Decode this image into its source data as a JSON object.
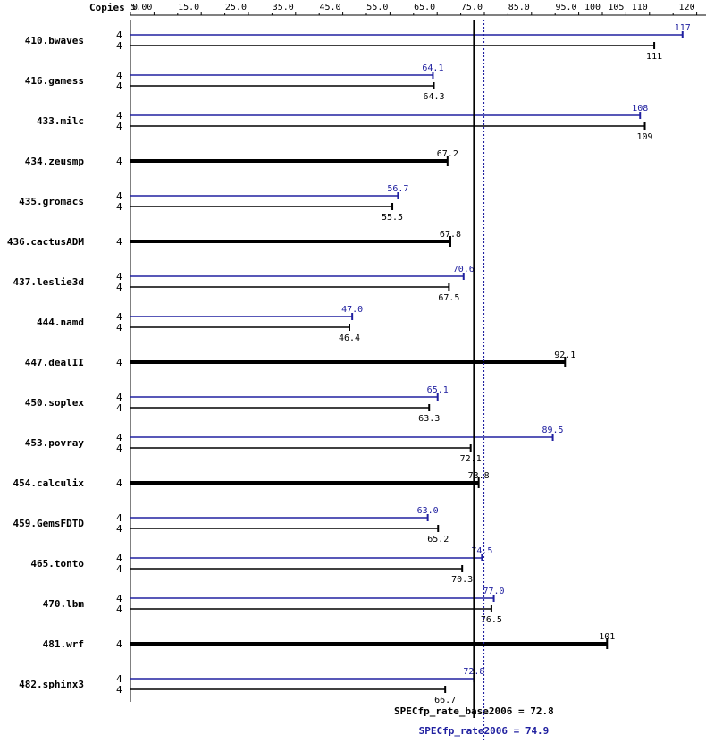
{
  "colors": {
    "peak": "#2020a0",
    "base": "#000000",
    "background": "#ffffff"
  },
  "chart_data": {
    "type": "bar",
    "orientation": "horizontal",
    "copies_header": "Copies",
    "x_ticks": [
      "0",
      "5.00",
      "15.0",
      "25.0",
      "35.0",
      "45.0",
      "55.0",
      "65.0",
      "75.0",
      "85.0",
      "95.0",
      "100",
      "105",
      "110",
      "120"
    ],
    "x_tick_values": [
      0,
      5,
      15,
      25,
      35,
      45,
      55,
      65,
      75,
      85,
      95,
      100,
      105,
      110,
      120
    ],
    "xlim": [
      0,
      120
    ],
    "legend": "none",
    "grid": false,
    "benchmarks": [
      {
        "name": "410.bwaves",
        "peak": {
          "copies": "4",
          "value": 117,
          "label": "117"
        },
        "base": {
          "copies": "4",
          "value": 111,
          "label": "111"
        }
      },
      {
        "name": "416.gamess",
        "peak": {
          "copies": "4",
          "value": 64.1,
          "label": "64.1"
        },
        "base": {
          "copies": "4",
          "value": 64.3,
          "label": "64.3"
        }
      },
      {
        "name": "433.milc",
        "peak": {
          "copies": "4",
          "value": 108,
          "label": "108"
        },
        "base": {
          "copies": "4",
          "value": 109,
          "label": "109"
        }
      },
      {
        "name": "434.zeusmp",
        "combined": {
          "copies": "4",
          "value": 67.2,
          "label": "67.2"
        }
      },
      {
        "name": "435.gromacs",
        "peak": {
          "copies": "4",
          "value": 56.7,
          "label": "56.7"
        },
        "base": {
          "copies": "4",
          "value": 55.5,
          "label": "55.5"
        }
      },
      {
        "name": "436.cactusADM",
        "combined": {
          "copies": "4",
          "value": 67.8,
          "label": "67.8"
        }
      },
      {
        "name": "437.leslie3d",
        "peak": {
          "copies": "4",
          "value": 70.6,
          "label": "70.6"
        },
        "base": {
          "copies": "4",
          "value": 67.5,
          "label": "67.5"
        }
      },
      {
        "name": "444.namd",
        "peak": {
          "copies": "4",
          "value": 47.0,
          "label": "47.0"
        },
        "base": {
          "copies": "4",
          "value": 46.4,
          "label": "46.4"
        }
      },
      {
        "name": "447.dealII",
        "combined": {
          "copies": "4",
          "value": 92.1,
          "label": "92.1"
        }
      },
      {
        "name": "450.soplex",
        "peak": {
          "copies": "4",
          "value": 65.1,
          "label": "65.1"
        },
        "base": {
          "copies": "4",
          "value": 63.3,
          "label": "63.3"
        }
      },
      {
        "name": "453.povray",
        "peak": {
          "copies": "4",
          "value": 89.5,
          "label": "89.5"
        },
        "base": {
          "copies": "4",
          "value": 72.1,
          "label": "72.1"
        }
      },
      {
        "name": "454.calculix",
        "combined": {
          "copies": "4",
          "value": 73.8,
          "label": "73.8"
        }
      },
      {
        "name": "459.GemsFDTD",
        "peak": {
          "copies": "4",
          "value": 63.0,
          "label": "63.0"
        },
        "base": {
          "copies": "4",
          "value": 65.2,
          "label": "65.2"
        }
      },
      {
        "name": "465.tonto",
        "peak": {
          "copies": "4",
          "value": 74.5,
          "label": "74.5"
        },
        "base": {
          "copies": "4",
          "value": 70.3,
          "label": "70.3"
        }
      },
      {
        "name": "470.lbm",
        "peak": {
          "copies": "4",
          "value": 77.0,
          "label": "77.0"
        },
        "base": {
          "copies": "4",
          "value": 76.5,
          "label": "76.5"
        }
      },
      {
        "name": "481.wrf",
        "combined": {
          "copies": "4",
          "value": 101,
          "label": "101"
        }
      },
      {
        "name": "482.sphinx3",
        "peak": {
          "copies": "4",
          "value": 72.8,
          "label": "72.8"
        },
        "base": {
          "copies": "4",
          "value": 66.7,
          "label": "66.7"
        }
      }
    ],
    "reference_lines": [
      {
        "name": "base",
        "value": 72.8,
        "label": "SPECfp_rate_base2006 = 72.8",
        "style": "solid"
      },
      {
        "name": "peak",
        "value": 74.9,
        "label": "SPECfp_rate2006 = 74.9",
        "style": "dotted"
      }
    ]
  }
}
